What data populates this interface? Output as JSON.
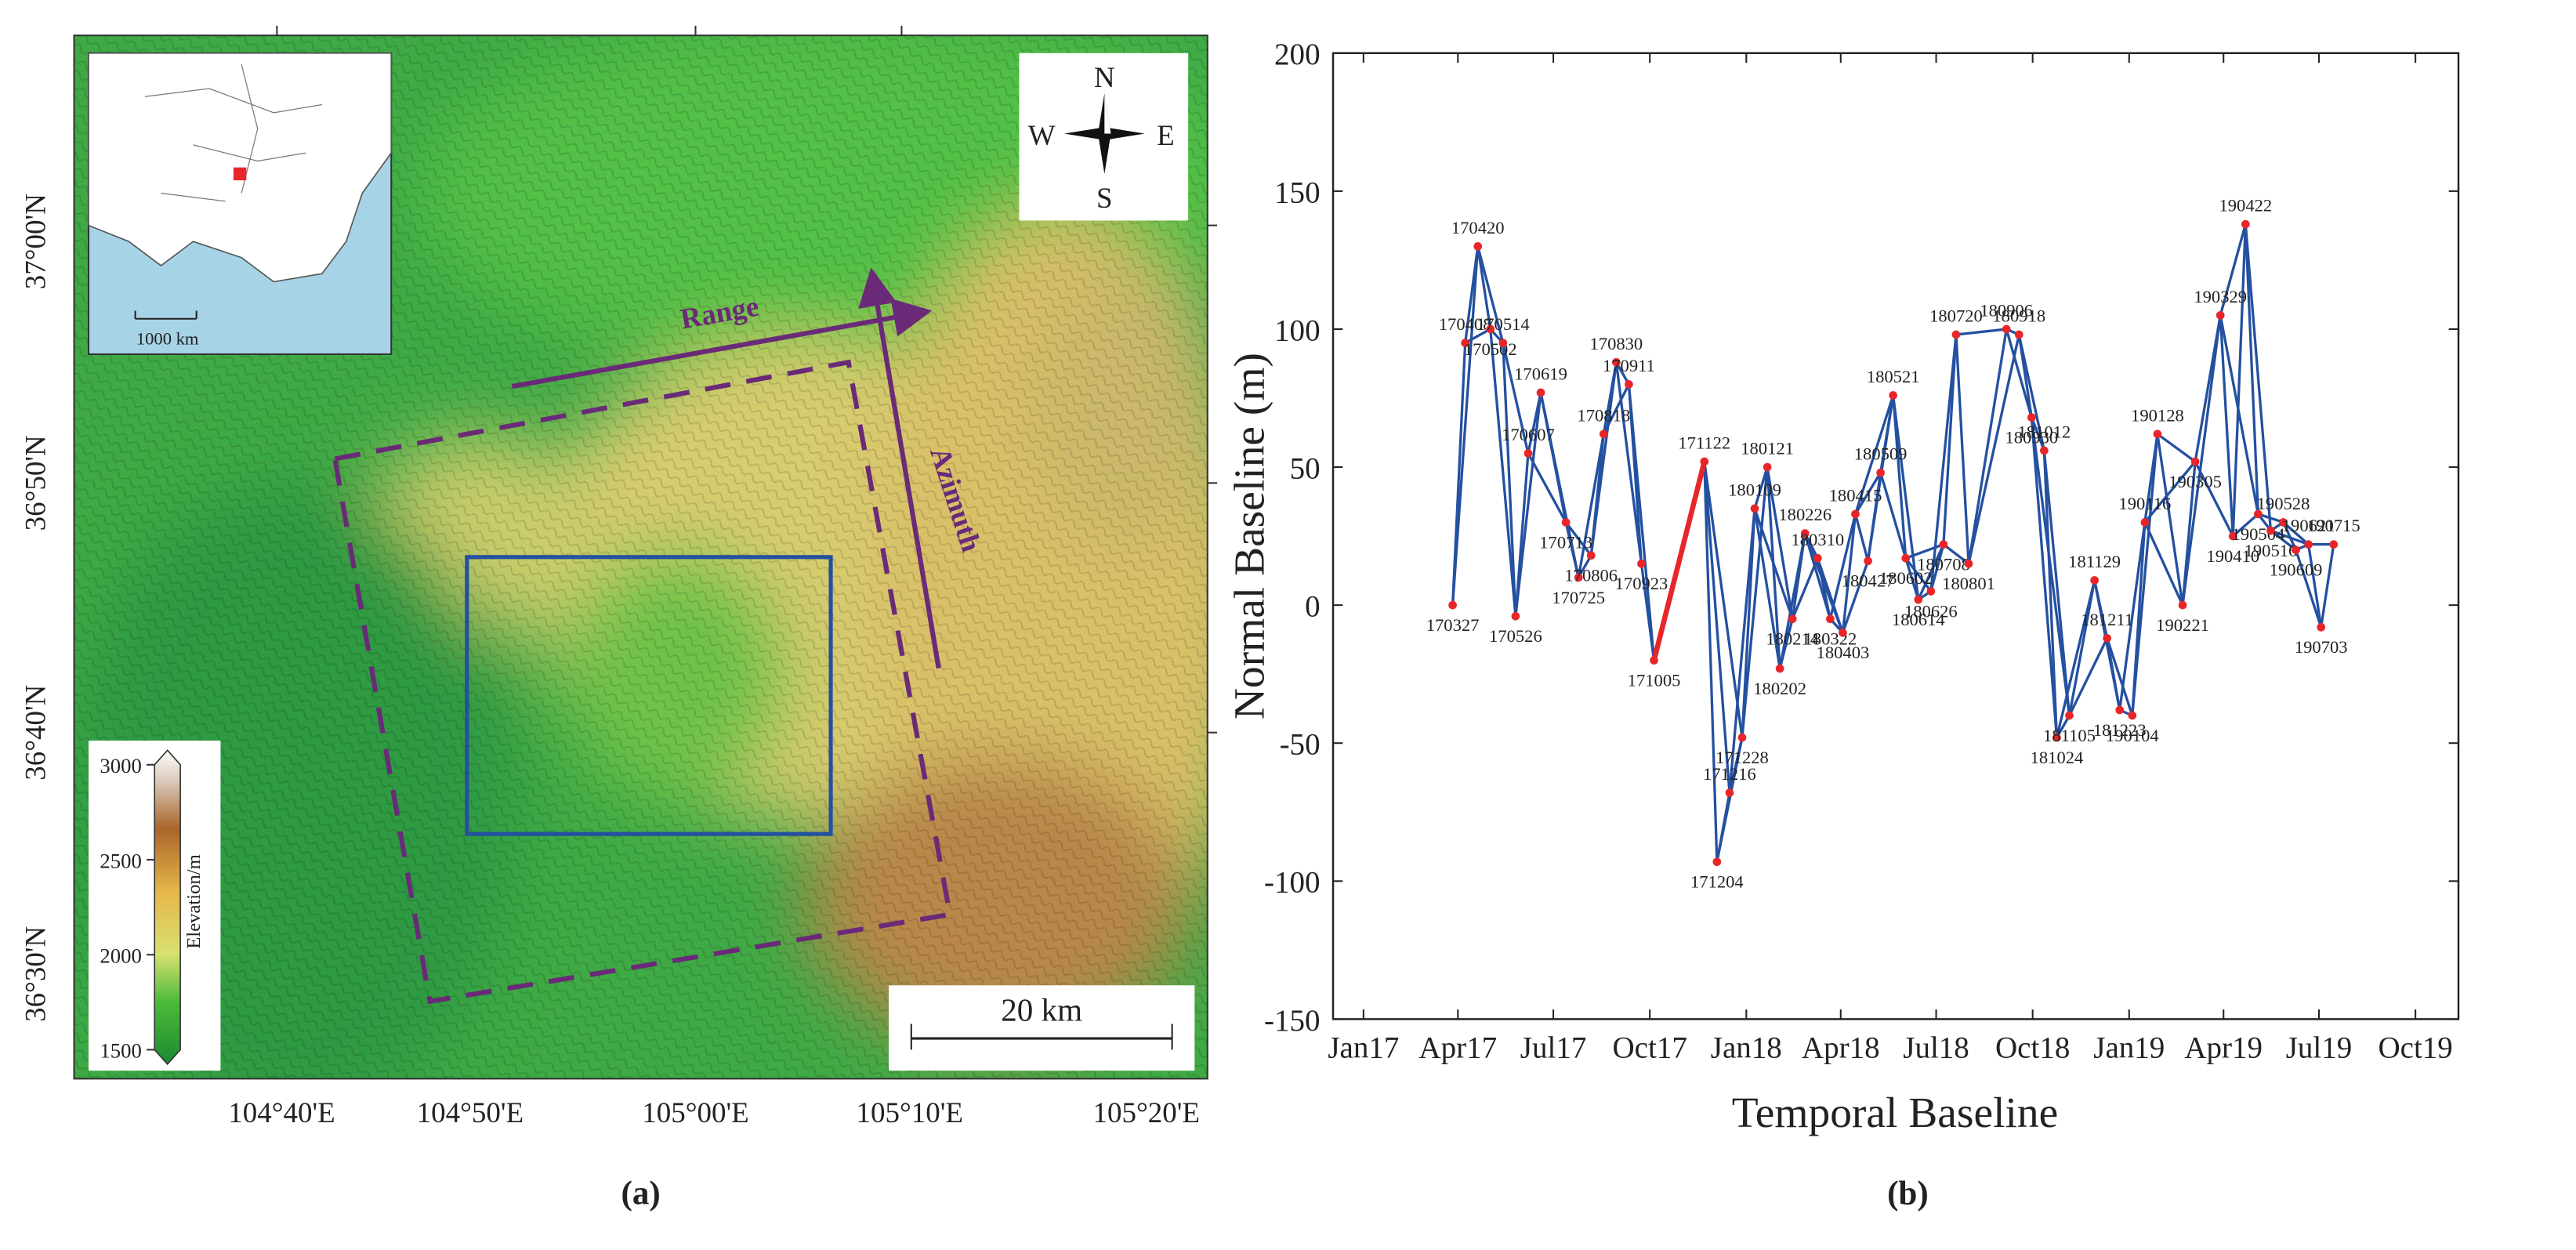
{
  "map": {
    "caption": "(a)",
    "inset_scale": "1000 km",
    "compass": {
      "n": "N",
      "s": "S",
      "w": "W",
      "e": "E"
    },
    "range_label": "Range",
    "azimuth_label": "Azimuth",
    "scale_bar": "20 km",
    "colorbar": {
      "label": "Elevation/m",
      "ticks": [
        1500,
        2000,
        2500,
        3000
      ]
    },
    "lat_labels": [
      "36°30'N",
      "36°40'N",
      "36°50'N",
      "37°00'N"
    ],
    "lon_labels": [
      "104°40'E",
      "104°50'E",
      "105°00'E",
      "105°10'E",
      "105°20'E"
    ]
  },
  "chart_data": {
    "type": "network",
    "caption": "(b)",
    "xlabel": "Temporal Baseline",
    "ylabel": "Normal Baseline (m)",
    "labels": [
      "170327",
      "170408",
      "170420",
      "170502",
      "170514",
      "170526",
      "170607",
      "170619",
      "170713",
      "170725",
      "170806",
      "170818",
      "170830",
      "170911",
      "170923",
      "171005",
      "171122",
      "171204",
      "171216",
      "171228",
      "180109",
      "180121",
      "180202",
      "180214",
      "180226",
      "180310",
      "180322",
      "180403",
      "180415",
      "180427",
      "180509",
      "180521",
      "180602",
      "180614",
      "180626",
      "180708",
      "180720",
      "180801",
      "180906",
      "180918",
      "180930",
      "181012",
      "181024",
      "181105",
      "181129",
      "181211",
      "181223",
      "190104",
      "190116",
      "190128",
      "190221",
      "190305",
      "190329",
      "190410",
      "190422",
      "190504",
      "190516",
      "190528",
      "190609",
      "190621",
      "190703",
      "190715"
    ],
    "x": [
      "2017-03-27",
      "2017-04-08",
      "2017-04-20",
      "2017-05-02",
      "2017-05-14",
      "2017-05-26",
      "2017-06-07",
      "2017-06-19",
      "2017-07-13",
      "2017-07-25",
      "2017-08-06",
      "2017-08-18",
      "2017-08-30",
      "2017-09-11",
      "2017-09-23",
      "2017-10-05",
      "2017-11-22",
      "2017-12-04",
      "2017-12-16",
      "2017-12-28",
      "2018-01-09",
      "2018-01-21",
      "2018-02-02",
      "2018-02-14",
      "2018-02-26",
      "2018-03-10",
      "2018-03-22",
      "2018-04-03",
      "2018-04-15",
      "2018-04-27",
      "2018-05-09",
      "2018-05-21",
      "2018-06-02",
      "2018-06-14",
      "2018-06-26",
      "2018-07-08",
      "2018-07-20",
      "2018-08-01",
      "2018-09-06",
      "2018-09-18",
      "2018-09-30",
      "2018-10-12",
      "2018-10-24",
      "2018-11-05",
      "2018-11-29",
      "2018-12-11",
      "2018-12-23",
      "2019-01-04",
      "2019-01-16",
      "2019-01-28",
      "2019-02-21",
      "2019-03-05",
      "2019-03-29",
      "2019-04-10",
      "2019-04-22",
      "2019-05-04",
      "2019-05-16",
      "2019-05-28",
      "2019-06-09",
      "2019-06-21",
      "2019-07-03",
      "2019-07-15"
    ],
    "values": [
      0,
      95,
      130,
      100,
      95,
      -4,
      55,
      77,
      30,
      10,
      18,
      62,
      88,
      80,
      15,
      -20,
      52,
      -93,
      -68,
      -48,
      35,
      50,
      -23,
      -5,
      26,
      17,
      -5,
      -10,
      33,
      16,
      48,
      76,
      17,
      2,
      5,
      22,
      98,
      15,
      100,
      98,
      68,
      56,
      -48,
      -40,
      9,
      -12,
      -38,
      -40,
      30,
      62,
      0,
      52,
      105,
      25,
      138,
      33,
      27,
      30,
      20,
      22,
      -8,
      22
    ],
    "color": "#e8262a",
    "edge_color": "#2450a0",
    "highlight_color": "#e8262a",
    "edges": [
      [
        0,
        1
      ],
      [
        0,
        2
      ],
      [
        1,
        2
      ],
      [
        1,
        3
      ],
      [
        2,
        3
      ],
      [
        2,
        4
      ],
      [
        3,
        4
      ],
      [
        3,
        5
      ],
      [
        4,
        5
      ],
      [
        4,
        6
      ],
      [
        5,
        6
      ],
      [
        5,
        7
      ],
      [
        6,
        7
      ],
      [
        6,
        8
      ],
      [
        7,
        8
      ],
      [
        7,
        9
      ],
      [
        8,
        9
      ],
      [
        8,
        10
      ],
      [
        9,
        10
      ],
      [
        9,
        11
      ],
      [
        10,
        11
      ],
      [
        10,
        12
      ],
      [
        11,
        12
      ],
      [
        11,
        13
      ],
      [
        12,
        13
      ],
      [
        12,
        14
      ],
      [
        13,
        14
      ],
      [
        13,
        15
      ],
      [
        14,
        15
      ],
      [
        16,
        17
      ],
      [
        17,
        18
      ],
      [
        18,
        19
      ],
      [
        19,
        20
      ],
      [
        20,
        21
      ],
      [
        21,
        22
      ],
      [
        22,
        23
      ],
      [
        23,
        24
      ],
      [
        24,
        25
      ],
      [
        25,
        26
      ],
      [
        26,
        27
      ],
      [
        27,
        28
      ],
      [
        28,
        29
      ],
      [
        29,
        30
      ],
      [
        30,
        31
      ],
      [
        31,
        32
      ],
      [
        32,
        33
      ],
      [
        33,
        34
      ],
      [
        34,
        35
      ],
      [
        35,
        36
      ],
      [
        36,
        37
      ],
      [
        37,
        38
      ],
      [
        38,
        39
      ],
      [
        39,
        40
      ],
      [
        40,
        41
      ],
      [
        41,
        42
      ],
      [
        42,
        43
      ],
      [
        43,
        44
      ],
      [
        44,
        45
      ],
      [
        45,
        46
      ],
      [
        46,
        47
      ],
      [
        47,
        48
      ],
      [
        48,
        49
      ],
      [
        49,
        50
      ],
      [
        50,
        51
      ],
      [
        51,
        52
      ],
      [
        52,
        53
      ],
      [
        53,
        54
      ],
      [
        54,
        55
      ],
      [
        55,
        56
      ],
      [
        56,
        57
      ],
      [
        57,
        58
      ],
      [
        58,
        59
      ],
      [
        59,
        60
      ],
      [
        60,
        61
      ],
      [
        16,
        18
      ],
      [
        17,
        19
      ],
      [
        18,
        20
      ],
      [
        19,
        21
      ],
      [
        20,
        22
      ],
      [
        21,
        23
      ],
      [
        22,
        24
      ],
      [
        23,
        25
      ],
      [
        24,
        26
      ],
      [
        25,
        27
      ],
      [
        26,
        28
      ],
      [
        27,
        29
      ],
      [
        28,
        30
      ],
      [
        29,
        31
      ],
      [
        30,
        32
      ],
      [
        31,
        33
      ],
      [
        32,
        34
      ],
      [
        33,
        35
      ],
      [
        34,
        36
      ],
      [
        35,
        37
      ],
      [
        36,
        38
      ],
      [
        37,
        39
      ],
      [
        38,
        40
      ],
      [
        39,
        41
      ],
      [
        40,
        42
      ],
      [
        41,
        43
      ],
      [
        42,
        44
      ],
      [
        43,
        45
      ],
      [
        44,
        46
      ],
      [
        45,
        47
      ],
      [
        46,
        48
      ],
      [
        47,
        49
      ],
      [
        48,
        50
      ],
      [
        49,
        51
      ],
      [
        50,
        52
      ],
      [
        51,
        53
      ],
      [
        52,
        54
      ],
      [
        53,
        55
      ],
      [
        54,
        56
      ],
      [
        55,
        57
      ],
      [
        56,
        58
      ],
      [
        57,
        59
      ],
      [
        58,
        60
      ],
      [
        59,
        61
      ],
      [
        16,
        19
      ],
      [
        20,
        23
      ],
      [
        24,
        27
      ],
      [
        28,
        31
      ],
      [
        32,
        35
      ],
      [
        40,
        43
      ],
      [
        48,
        51
      ],
      [
        52,
        55
      ],
      [
        56,
        59
      ]
    ],
    "highlight_edges": [
      [
        15,
        16
      ]
    ],
    "xlim": [
      "2016-12-03",
      "2019-11-11"
    ],
    "xticks": [
      {
        "value": "2017-01-01",
        "label": "Jan17"
      },
      {
        "value": "2017-04-01",
        "label": "Apr17"
      },
      {
        "value": "2017-07-01",
        "label": "Jul17"
      },
      {
        "value": "2017-10-01",
        "label": "Oct17"
      },
      {
        "value": "2018-01-01",
        "label": "Jan18"
      },
      {
        "value": "2018-04-01",
        "label": "Apr18"
      },
      {
        "value": "2018-07-01",
        "label": "Jul18"
      },
      {
        "value": "2018-10-01",
        "label": "Oct18"
      },
      {
        "value": "2019-01-01",
        "label": "Jan19"
      },
      {
        "value": "2019-04-01",
        "label": "Apr19"
      },
      {
        "value": "2019-07-01",
        "label": "Jul19"
      },
      {
        "value": "2019-10-01",
        "label": "Oct19"
      }
    ],
    "ylim": [
      -150,
      200
    ],
    "yticks": [
      200,
      150,
      100,
      50,
      0,
      -50,
      -100,
      -150
    ]
  }
}
